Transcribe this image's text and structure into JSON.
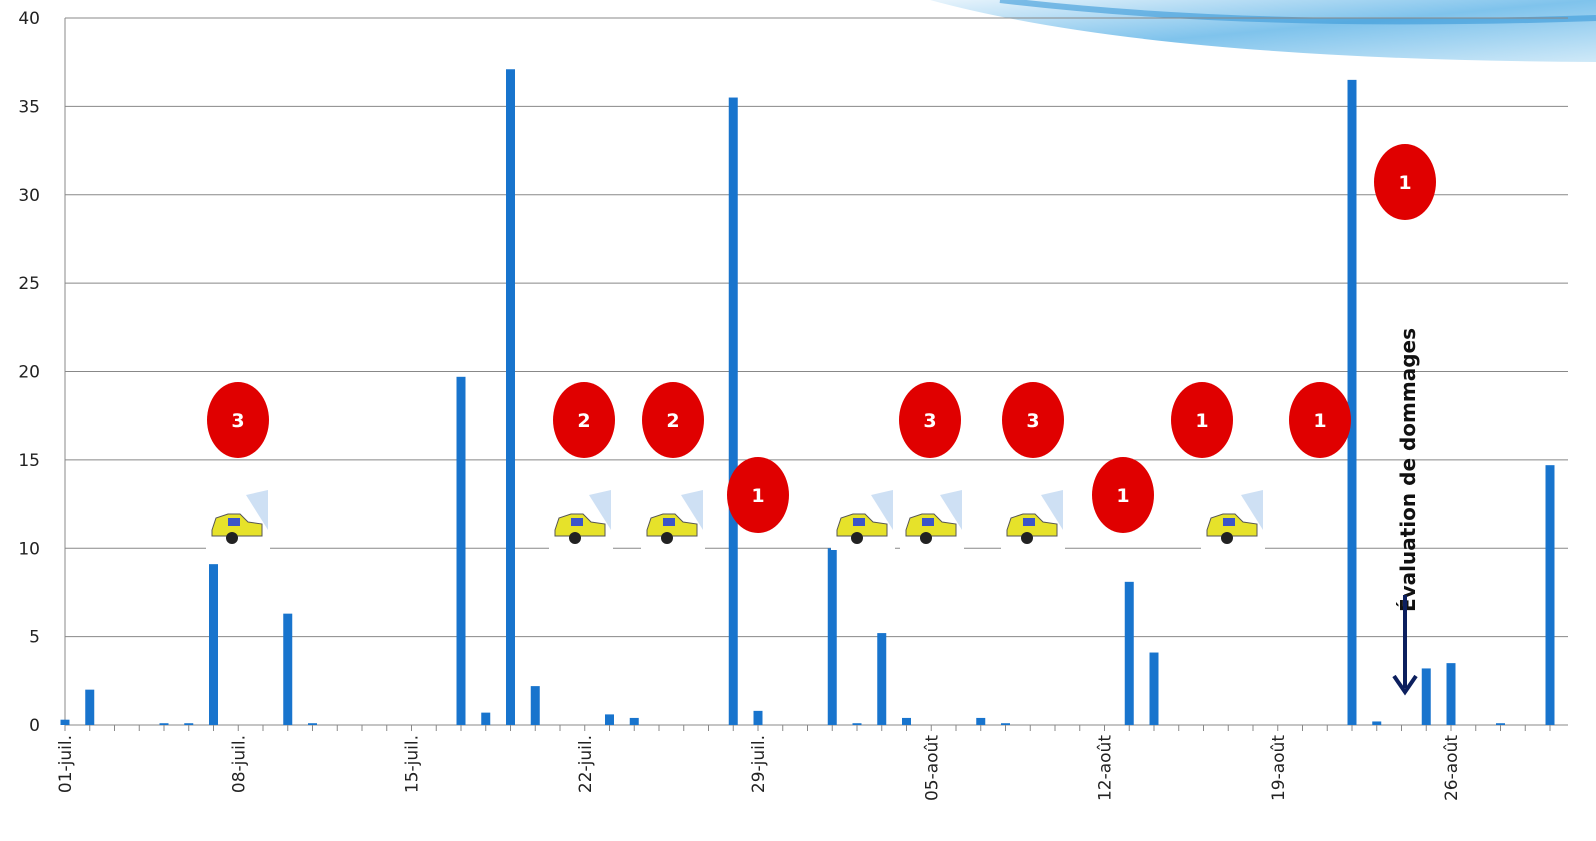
{
  "chart_data": {
    "type": "bar",
    "categories": [
      "01-juil.",
      null,
      null,
      null,
      null,
      null,
      null,
      "08-juil.",
      null,
      null,
      null,
      null,
      null,
      null,
      "15-juil.",
      null,
      null,
      null,
      null,
      null,
      null,
      "22-juil.",
      null,
      null,
      null,
      null,
      null,
      null,
      "29-juil.",
      null,
      null,
      null,
      null,
      null,
      null,
      "05-août",
      null,
      null,
      null,
      null,
      null,
      null,
      "12-août",
      null,
      null,
      null,
      null,
      null,
      null,
      "19-août",
      null,
      null,
      null,
      null,
      null,
      null,
      "26-août",
      null,
      null,
      null,
      null
    ],
    "values": [
      0.3,
      2.0,
      0,
      0,
      0.1,
      0.1,
      9.1,
      0,
      0,
      6.3,
      0.1,
      0,
      0,
      0,
      0,
      0,
      19.7,
      0.7,
      37.1,
      2.2,
      0,
      0,
      0.6,
      0.4,
      0,
      0,
      0,
      35.5,
      0.8,
      0,
      0,
      10.0,
      0.1,
      5.2,
      0.4,
      0,
      0,
      0.4,
      0.1,
      0,
      0,
      0,
      0,
      8.1,
      4.1,
      0,
      0,
      0,
      0,
      0,
      0,
      0,
      36.5,
      0.2,
      0,
      3.2,
      3.5,
      0,
      0.1,
      0,
      14.7
    ],
    "color": "#1874cd",
    "ylim": [
      0,
      40
    ],
    "yticks": [
      0,
      5,
      10,
      15,
      20,
      25,
      30,
      35,
      40
    ],
    "grid": true,
    "annotations": [
      "3",
      "2",
      "2",
      "1",
      "3",
      "3",
      "1",
      "1",
      "1",
      "1"
    ],
    "note": "Évaluation de dommages"
  }
}
